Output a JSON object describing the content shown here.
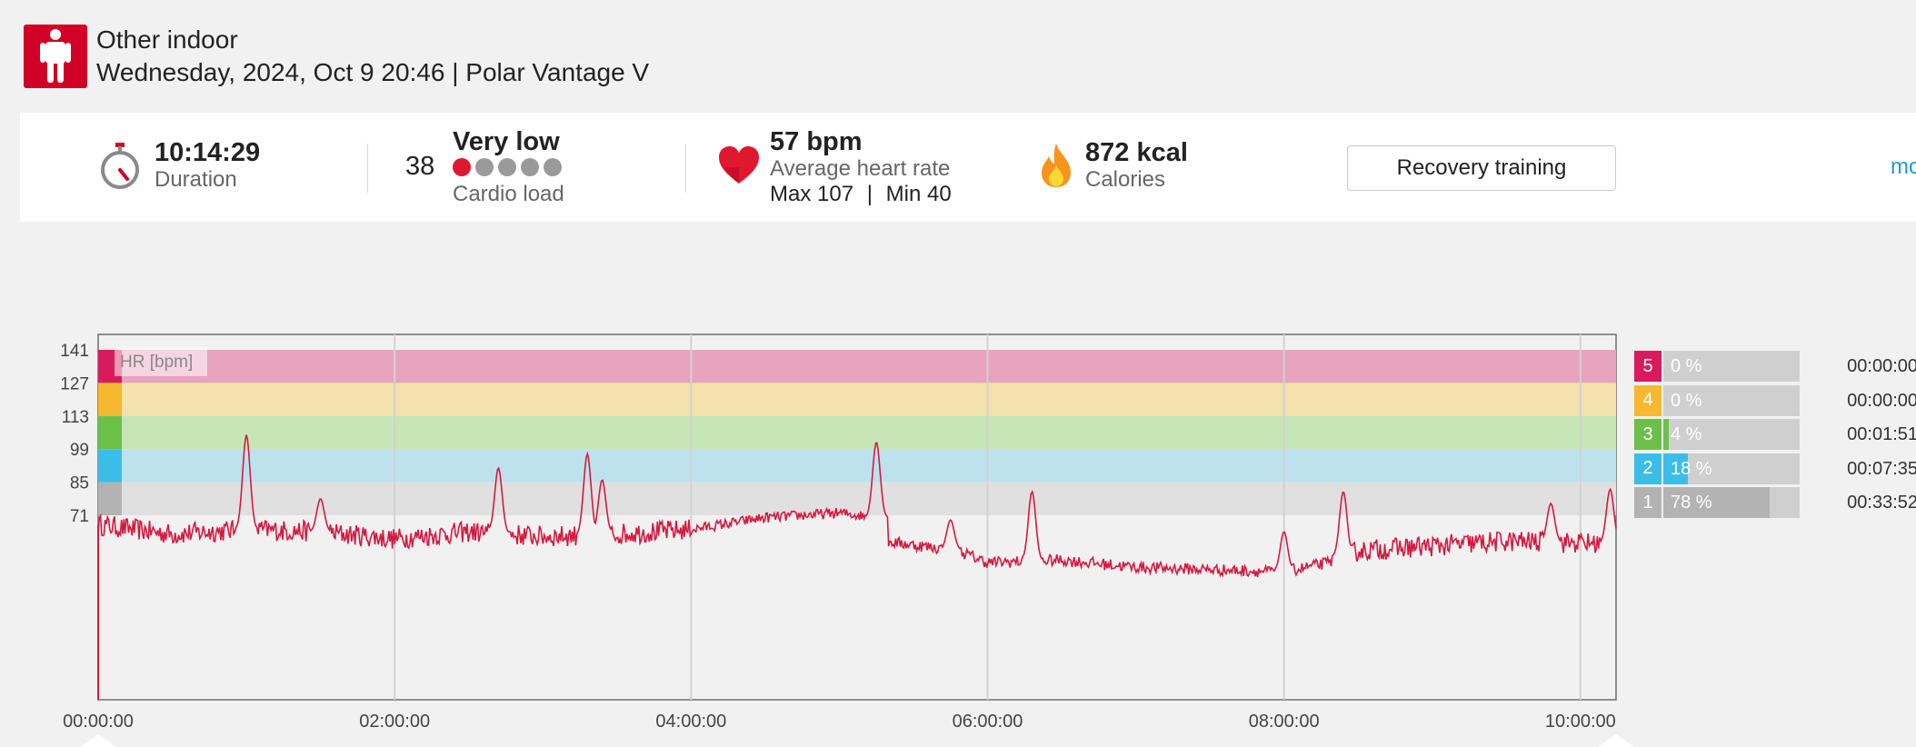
{
  "header": {
    "title": "Other indoor",
    "subtitle": "Wednesday, 2024, Oct 9 20:46 | Polar Vantage V",
    "icon": "person-standing-icon",
    "icon_color": "#d10027"
  },
  "summary": {
    "duration": {
      "value": "10:14:29",
      "label": "Duration",
      "icon": "stopwatch-icon"
    },
    "cardio_load": {
      "value": "38",
      "level": "Very low",
      "label": "Cardio load",
      "dots_total": 5,
      "dots_active": 1
    },
    "heart_rate": {
      "value": "57 bpm",
      "label": "Average heart rate",
      "max_label": "Max 107",
      "separator": "|",
      "min_label": "Min 40",
      "icon": "heart-icon"
    },
    "calories": {
      "value": "872 kcal",
      "label": "Calories",
      "icon": "flame-icon"
    },
    "benefit_button": "Recovery training",
    "more_link": "mo"
  },
  "chart_data": {
    "type": "line",
    "series_label": "HR [bpm]",
    "x_ticks": [
      "00:00:00",
      "02:00:00",
      "04:00:00",
      "06:00:00",
      "08:00:00",
      "10:00:00"
    ],
    "x_range_hours": [
      0,
      10.24
    ],
    "y_ticks": [
      141,
      127,
      113,
      99,
      85,
      71
    ],
    "zones": [
      {
        "zone": 5,
        "from": 127,
        "to": 141,
        "color": "#e8a3bd"
      },
      {
        "zone": 4,
        "from": 113,
        "to": 127,
        "color": "#f4e1ab"
      },
      {
        "zone": 3,
        "from": 99,
        "to": 113,
        "color": "#c7e6b5"
      },
      {
        "zone": 2,
        "from": 85,
        "to": 99,
        "color": "#bde2ee"
      },
      {
        "zone": 1,
        "from": 71,
        "to": 85,
        "color": "#e0e0e0"
      }
    ],
    "line_color": "#d41a41",
    "hr_baseline": [
      [
        0.0,
        67
      ],
      [
        0.5,
        63
      ],
      [
        1.0,
        65
      ],
      [
        1.5,
        64
      ],
      [
        2.0,
        61
      ],
      [
        2.5,
        64
      ],
      [
        3.0,
        62
      ],
      [
        3.5,
        63
      ],
      [
        4.0,
        65
      ],
      [
        4.5,
        70
      ],
      [
        5.0,
        72
      ],
      [
        5.25,
        70
      ],
      [
        5.3,
        60
      ],
      [
        5.8,
        56
      ],
      [
        6.0,
        51
      ],
      [
        6.5,
        52
      ],
      [
        7.0,
        49
      ],
      [
        7.5,
        48
      ],
      [
        8.0,
        47
      ],
      [
        8.3,
        51
      ],
      [
        8.5,
        56
      ],
      [
        9.0,
        58
      ],
      [
        9.5,
        60
      ],
      [
        10.24,
        59
      ]
    ],
    "hr_peaks": [
      [
        1.0,
        105
      ],
      [
        1.5,
        78
      ],
      [
        2.7,
        91
      ],
      [
        3.3,
        97
      ],
      [
        3.4,
        86
      ],
      [
        5.25,
        102
      ],
      [
        5.75,
        69
      ],
      [
        6.3,
        81
      ],
      [
        8.0,
        64
      ],
      [
        8.4,
        81
      ],
      [
        9.8,
        76
      ],
      [
        10.2,
        82
      ]
    ]
  },
  "zone_summary": [
    {
      "zone": "5",
      "percent": "0 %",
      "fraction": 0.0,
      "time": "00:00:00",
      "color": "#d81b5c"
    },
    {
      "zone": "4",
      "percent": "0 %",
      "fraction": 0.0,
      "time": "00:00:00",
      "color": "#f5b82e"
    },
    {
      "zone": "3",
      "percent": "4 %",
      "fraction": 0.04,
      "time": "00:01:51",
      "color": "#6cc04a"
    },
    {
      "zone": "2",
      "percent": "18 %",
      "fraction": 0.18,
      "time": "00:07:35",
      "color": "#3cbde8"
    },
    {
      "zone": "1",
      "percent": "78 %",
      "fraction": 0.78,
      "time": "00:33:52",
      "color": "#b3b3b3"
    }
  ]
}
